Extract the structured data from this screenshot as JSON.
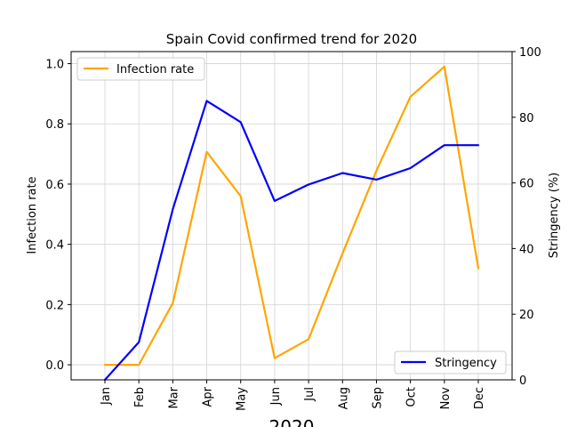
{
  "chart_data": {
    "type": "line",
    "title": "Spain Covid confirmed trend for 2020",
    "xlabel": "2020",
    "categories": [
      "Jan",
      "Feb",
      "Mar",
      "Apr",
      "May",
      "Jun",
      "Jul",
      "Aug",
      "Sep",
      "Oct",
      "Nov",
      "Dec"
    ],
    "left_axis": {
      "label": "Infection rate",
      "ylim": [
        -0.05,
        1.04
      ],
      "ticks": [
        "0.0",
        "0.2",
        "0.4",
        "0.6",
        "0.8",
        "1.0"
      ],
      "tick_values": [
        0.0,
        0.2,
        0.4,
        0.6,
        0.8,
        1.0
      ]
    },
    "right_axis": {
      "label": "Stringency (%)",
      "ylim": [
        0,
        100
      ],
      "ticks": [
        "0",
        "20",
        "40",
        "60",
        "80",
        "100"
      ],
      "tick_values": [
        0,
        20,
        40,
        60,
        80,
        100
      ]
    },
    "series": [
      {
        "name": "Infection rate",
        "axis": "left",
        "color": "#FFA500",
        "values": [
          0.0,
          0.0,
          0.205,
          0.707,
          0.56,
          0.022,
          0.085,
          0.37,
          0.645,
          0.89,
          0.99,
          0.32
        ]
      },
      {
        "name": "Stringency",
        "axis": "right",
        "color": "#0000FF",
        "values": [
          0,
          11.5,
          52,
          85,
          78.5,
          54.5,
          59.5,
          63,
          61,
          64.5,
          71.5,
          71.5
        ]
      }
    ],
    "legends": [
      {
        "series": "Infection rate",
        "placement": "upper-left"
      },
      {
        "series": "Stringency",
        "placement": "lower-right"
      }
    ],
    "grid": true
  }
}
